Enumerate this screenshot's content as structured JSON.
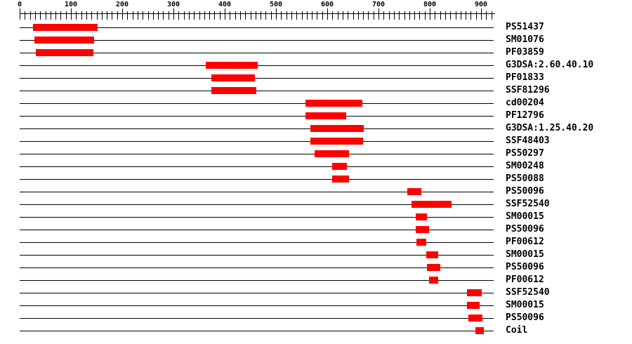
{
  "chart_data": {
    "type": "domain-track-plot",
    "title": "",
    "axis": {
      "min": 0,
      "max": 920,
      "minor_tick_interval": 10,
      "major_tick_interval": 100,
      "major_tick_labels": [
        "0",
        "100",
        "200",
        "300",
        "400",
        "500",
        "600",
        "700",
        "800",
        "900"
      ]
    },
    "rows": [
      {
        "label": "PS51437",
        "start": 26,
        "end": 152
      },
      {
        "label": "SM01076",
        "start": 29,
        "end": 145
      },
      {
        "label": "PF03859",
        "start": 32,
        "end": 144
      },
      {
        "label": "G3DSA:2.60.40.10",
        "start": 363,
        "end": 464
      },
      {
        "label": "PF01833",
        "start": 374,
        "end": 459
      },
      {
        "label": "SSF81296",
        "start": 374,
        "end": 461
      },
      {
        "label": "cd00204",
        "start": 557,
        "end": 668
      },
      {
        "label": "PF12796",
        "start": 557,
        "end": 637
      },
      {
        "label": "G3DSA:1.25.40.20",
        "start": 567,
        "end": 671
      },
      {
        "label": "SSF48403",
        "start": 567,
        "end": 670
      },
      {
        "label": "PS50297",
        "start": 576,
        "end": 642
      },
      {
        "label": "SM00248",
        "start": 609,
        "end": 638
      },
      {
        "label": "PS50088",
        "start": 609,
        "end": 642
      },
      {
        "label": "PS50096",
        "start": 756,
        "end": 783
      },
      {
        "label": "SSF52540",
        "start": 765,
        "end": 842
      },
      {
        "label": "SM00015",
        "start": 772,
        "end": 794
      },
      {
        "label": "PS50096",
        "start": 773,
        "end": 799
      },
      {
        "label": "PF00612",
        "start": 774,
        "end": 793
      },
      {
        "label": "SM00015",
        "start": 793,
        "end": 816
      },
      {
        "label": "PS50096",
        "start": 795,
        "end": 820
      },
      {
        "label": "PF00612",
        "start": 798,
        "end": 816
      },
      {
        "label": "SSF52540",
        "start": 873,
        "end": 902
      },
      {
        "label": "SM00015",
        "start": 872,
        "end": 897
      },
      {
        "label": "PS50096",
        "start": 875,
        "end": 903
      },
      {
        "label": "Coil",
        "start": 889,
        "end": 906
      }
    ],
    "colors": {
      "bar": "#ff0000",
      "line": "#000000",
      "text": "#000000",
      "background": "#ffffff"
    }
  }
}
